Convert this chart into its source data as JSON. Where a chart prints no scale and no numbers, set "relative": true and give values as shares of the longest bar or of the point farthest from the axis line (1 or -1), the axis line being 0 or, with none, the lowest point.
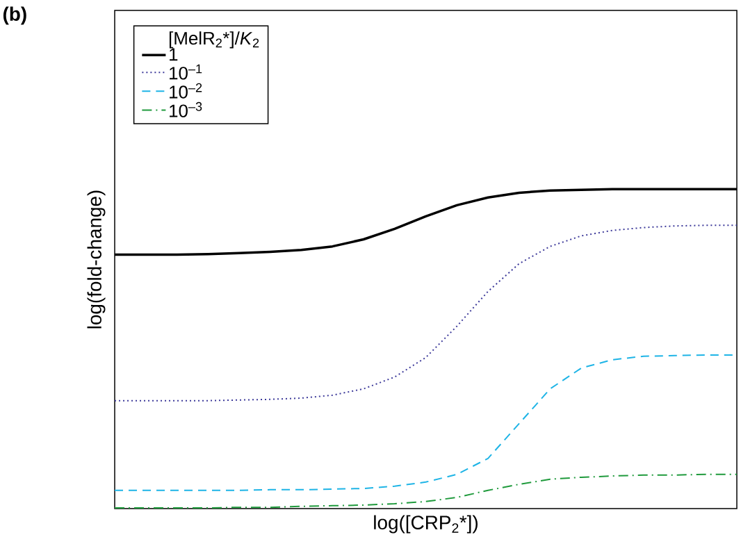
{
  "chart_data": {
    "type": "line",
    "relative": true,
    "xlabel": "log([CRP$_{2}$*])",
    "ylabel": "log(fold-change)",
    "legend_title": "[MelR$_{2}$*]/*K*$_{2}$",
    "annotations": [
      "**(b)**"
    ],
    "categories": [
      null,
      null,
      null,
      null,
      null,
      null,
      null,
      null,
      null,
      null,
      null,
      null,
      null,
      null,
      null,
      null,
      null,
      null,
      null,
      null,
      null
    ],
    "legend": "top left",
    "series": [
      {
        "name": "1",
        "color": "#000000",
        "line_style": "solid",
        "values": [
          0.795,
          0.795,
          0.795,
          0.797,
          0.8,
          0.804,
          0.81,
          0.821,
          0.843,
          0.876,
          0.915,
          0.95,
          0.974,
          0.989,
          0.996,
          0.998,
          1,
          1,
          1,
          1,
          1
        ]
      },
      {
        "name": "10$^{–1}$",
        "color": "#3d3a9a",
        "line_style": "dotted",
        "values": [
          0.338,
          0.338,
          0.338,
          0.338,
          0.34,
          0.342,
          0.346,
          0.355,
          0.375,
          0.412,
          0.473,
          0.571,
          0.68,
          0.767,
          0.821,
          0.854,
          0.871,
          0.88,
          0.885,
          0.887,
          0.887
        ]
      },
      {
        "name": "10$^{–2}$",
        "color": "#1eb4e6",
        "line_style": "dashed",
        "values": [
          0.057,
          0.057,
          0.057,
          0.057,
          0.057,
          0.059,
          0.059,
          0.061,
          0.063,
          0.07,
          0.083,
          0.107,
          0.157,
          0.266,
          0.375,
          0.44,
          0.466,
          0.477,
          0.479,
          0.481,
          0.481
        ]
      },
      {
        "name": "10$^{–3}$",
        "color": "#1f9a3c",
        "line_style": "dashdot",
        "values": [
          0.002,
          0.002,
          0.002,
          0.002,
          0.004,
          0.004,
          0.007,
          0.009,
          0.011,
          0.015,
          0.022,
          0.035,
          0.057,
          0.076,
          0.092,
          0.098,
          0.102,
          0.105,
          0.105,
          0.107,
          0.107
        ]
      }
    ]
  }
}
